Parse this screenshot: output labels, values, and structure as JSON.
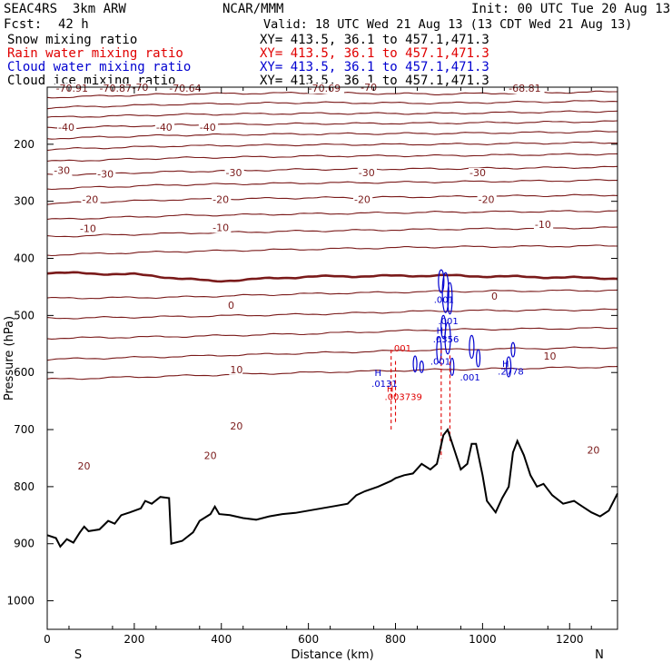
{
  "header": {
    "model": "SEAC4RS  3km ARW",
    "org": "NCAR/MMM",
    "init": "Init: 00 UTC Tue 20 Aug 13",
    "fcst_label": "Fcst:",
    "fcst_value": "42 h",
    "valid": "Valid: 18 UTC Wed 21 Aug 13 (13 CDT Wed 21 Aug 13)",
    "fields": [
      {
        "name": "Snow mixing ratio",
        "xy": "XY= 413.5, 36.1 to 457.1,471.3",
        "color": "#000000"
      },
      {
        "name": "Rain water mixing ratio",
        "xy": "XY= 413.5, 36.1 to 457.1,471.3",
        "color": "#e00000"
      },
      {
        "name": "Cloud water mixing ratio",
        "xy": "XY= 413.5, 36.1 to 457.1,471.3",
        "color": "#0000d0"
      },
      {
        "name": "Cloud ice mixing ratio",
        "xy": "XY= 413.5, 36.1 to 457.1,471.3",
        "color": "#000000"
      }
    ]
  },
  "chart_data": {
    "type": "line",
    "xlabel": "Distance (km)",
    "ylabel": "Pressure (hPa)",
    "xlim": [
      0,
      1310
    ],
    "ylim": [
      1050,
      100
    ],
    "y_reversed": true,
    "x_ticks": [
      "0",
      "200",
      "400",
      "600",
      "800",
      "1000",
      "1200"
    ],
    "x_tick_values": [
      0,
      200,
      400,
      600,
      800,
      1000,
      1200
    ],
    "y_ticks": [
      "200",
      "300",
      "400",
      "500",
      "600",
      "700",
      "800",
      "900",
      "1000"
    ],
    "y_tick_values": [
      200,
      300,
      400,
      500,
      600,
      700,
      800,
      900,
      1000
    ],
    "x_end_labels": {
      "left": "S",
      "right": "N"
    },
    "colors": {
      "temperature": "#7a1a1a",
      "terrain": "#000000",
      "rain": "#e00000",
      "cloud_water": "#0000d0"
    },
    "temperature_isotherms": [
      {
        "value": -70,
        "p": [
          [
            0,
            118
          ],
          [
            300,
            112
          ],
          [
            600,
            110
          ],
          [
            900,
            112
          ],
          [
            1310,
            108
          ]
        ]
      },
      {
        "value": -60,
        "p": [
          [
            0,
            136
          ],
          [
            300,
            130
          ],
          [
            600,
            127
          ],
          [
            900,
            128
          ],
          [
            1310,
            124
          ]
        ]
      },
      {
        "value": -55,
        "p": [
          [
            0,
            153
          ],
          [
            300,
            148
          ],
          [
            600,
            146
          ],
          [
            900,
            146
          ],
          [
            1310,
            142
          ]
        ]
      },
      {
        "value": -50,
        "p": [
          [
            0,
            172
          ],
          [
            300,
            166
          ],
          [
            600,
            164
          ],
          [
            900,
            163
          ],
          [
            1310,
            160
          ]
        ]
      },
      {
        "value": -45,
        "p": [
          [
            0,
            190
          ],
          [
            300,
            184
          ],
          [
            600,
            182
          ],
          [
            900,
            181
          ],
          [
            1310,
            178
          ]
        ]
      },
      {
        "value": -40,
        "p": [
          [
            0,
            209
          ],
          [
            300,
            203
          ],
          [
            600,
            201
          ],
          [
            900,
            200
          ],
          [
            1310,
            197
          ]
        ]
      },
      {
        "value": -35,
        "p": [
          [
            0,
            230
          ],
          [
            300,
            224
          ],
          [
            600,
            221
          ],
          [
            900,
            220
          ],
          [
            1310,
            217
          ]
        ]
      },
      {
        "value": -30,
        "p": [
          [
            0,
            254
          ],
          [
            300,
            248
          ],
          [
            600,
            244
          ],
          [
            900,
            243
          ],
          [
            1310,
            240
          ]
        ]
      },
      {
        "value": -25,
        "p": [
          [
            0,
            278
          ],
          [
            300,
            271
          ],
          [
            600,
            268
          ],
          [
            900,
            266
          ],
          [
            1310,
            263
          ]
        ]
      },
      {
        "value": -20,
        "p": [
          [
            0,
            304
          ],
          [
            300,
            297
          ],
          [
            600,
            294
          ],
          [
            900,
            292
          ],
          [
            1310,
            289
          ]
        ]
      },
      {
        "value": -15,
        "p": [
          [
            0,
            332
          ],
          [
            300,
            325
          ],
          [
            600,
            322
          ],
          [
            900,
            319
          ],
          [
            1310,
            317
          ]
        ]
      },
      {
        "value": -10,
        "p": [
          [
            0,
            362
          ],
          [
            300,
            356
          ],
          [
            600,
            352
          ],
          [
            900,
            349
          ],
          [
            1310,
            346
          ]
        ]
      },
      {
        "value": -5,
        "p": [
          [
            0,
            394
          ],
          [
            300,
            388
          ],
          [
            600,
            384
          ],
          [
            900,
            380
          ],
          [
            1310,
            378
          ]
        ]
      },
      {
        "value": 0,
        "p": [
          [
            0,
            425
          ],
          [
            200,
            428
          ],
          [
            380,
            440
          ],
          [
            600,
            432
          ],
          [
            900,
            430
          ],
          [
            1310,
            435
          ]
        ]
      },
      {
        "value": 5,
        "p": [
          [
            0,
            470
          ],
          [
            300,
            468
          ],
          [
            600,
            462
          ],
          [
            900,
            458
          ],
          [
            1310,
            456
          ]
        ]
      },
      {
        "value": 10,
        "p": [
          [
            0,
            505
          ],
          [
            300,
            502
          ],
          [
            600,
            498
          ],
          [
            900,
            492
          ],
          [
            1310,
            490
          ]
        ]
      },
      {
        "value": 15,
        "p": [
          [
            0,
            540
          ],
          [
            300,
            537
          ],
          [
            600,
            532
          ],
          [
            900,
            525
          ],
          [
            1310,
            522
          ]
        ]
      },
      {
        "value": 20,
        "p": [
          [
            0,
            577
          ],
          [
            300,
            572
          ],
          [
            600,
            566
          ],
          [
            900,
            560
          ],
          [
            1310,
            556
          ]
        ]
      },
      {
        "value": 25,
        "p": [
          [
            0,
            612
          ],
          [
            300,
            606
          ],
          [
            600,
            600
          ],
          [
            900,
            595
          ],
          [
            1310,
            590
          ]
        ]
      }
    ],
    "contour_labels": [
      {
        "text": "-70.91",
        "x": 20,
        "p": 108
      },
      {
        "text": "-70.87",
        "x": 120,
        "p": 108
      },
      {
        "text": "-70",
        "x": 195,
        "p": 106
      },
      {
        "text": "-70.64",
        "x": 280,
        "p": 108
      },
      {
        "text": "-70.69",
        "x": 600,
        "p": 108
      },
      {
        "text": "-70",
        "x": 720,
        "p": 106
      },
      {
        "text": "-68.81",
        "x": 1060,
        "p": 108
      },
      {
        "text": "-40",
        "x": 25,
        "p": 176
      },
      {
        "text": "-40",
        "x": 250,
        "p": 176
      },
      {
        "text": "-40",
        "x": 350,
        "p": 176
      },
      {
        "text": "-30",
        "x": 15,
        "p": 252
      },
      {
        "text": "-30",
        "x": 115,
        "p": 258
      },
      {
        "text": "-30",
        "x": 410,
        "p": 256
      },
      {
        "text": "-30",
        "x": 715,
        "p": 256
      },
      {
        "text": "-30",
        "x": 970,
        "p": 256
      },
      {
        "text": "-20",
        "x": 80,
        "p": 303
      },
      {
        "text": "-20",
        "x": 380,
        "p": 303
      },
      {
        "text": "-20",
        "x": 705,
        "p": 303
      },
      {
        "text": "-20",
        "x": 990,
        "p": 303
      },
      {
        "text": "-10",
        "x": 75,
        "p": 354
      },
      {
        "text": "-10",
        "x": 380,
        "p": 352
      },
      {
        "text": "-10",
        "x": 1120,
        "p": 347
      },
      {
        "text": "0",
        "x": 415,
        "p": 488
      },
      {
        "text": "0",
        "x": 1020,
        "p": 472
      },
      {
        "text": "10",
        "x": 420,
        "p": 601
      },
      {
        "text": "10",
        "x": 1140,
        "p": 577
      },
      {
        "text": "20",
        "x": 420,
        "p": 700
      },
      {
        "text": "20",
        "x": 360,
        "p": 752
      },
      {
        "text": "20",
        "x": 70,
        "p": 770
      },
      {
        "text": "20",
        "x": 1240,
        "p": 742
      }
    ],
    "terrain": [
      [
        0,
        885
      ],
      [
        20,
        890
      ],
      [
        30,
        905
      ],
      [
        45,
        892
      ],
      [
        60,
        898
      ],
      [
        75,
        880
      ],
      [
        85,
        870
      ],
      [
        95,
        878
      ],
      [
        120,
        875
      ],
      [
        140,
        860
      ],
      [
        155,
        865
      ],
      [
        170,
        850
      ],
      [
        190,
        845
      ],
      [
        215,
        838
      ],
      [
        225,
        825
      ],
      [
        240,
        830
      ],
      [
        260,
        818
      ],
      [
        280,
        820
      ],
      [
        285,
        900
      ],
      [
        310,
        895
      ],
      [
        335,
        880
      ],
      [
        350,
        860
      ],
      [
        375,
        848
      ],
      [
        385,
        835
      ],
      [
        395,
        848
      ],
      [
        420,
        850
      ],
      [
        450,
        855
      ],
      [
        480,
        858
      ],
      [
        510,
        852
      ],
      [
        540,
        848
      ],
      [
        570,
        846
      ],
      [
        600,
        842
      ],
      [
        630,
        838
      ],
      [
        660,
        834
      ],
      [
        690,
        830
      ],
      [
        710,
        815
      ],
      [
        730,
        808
      ],
      [
        760,
        800
      ],
      [
        790,
        790
      ],
      [
        800,
        785
      ],
      [
        820,
        780
      ],
      [
        840,
        777
      ],
      [
        860,
        760
      ],
      [
        880,
        770
      ],
      [
        895,
        760
      ],
      [
        910,
        710
      ],
      [
        920,
        700
      ],
      [
        935,
        735
      ],
      [
        950,
        770
      ],
      [
        965,
        760
      ],
      [
        975,
        725
      ],
      [
        985,
        725
      ],
      [
        1000,
        780
      ],
      [
        1010,
        825
      ],
      [
        1030,
        845
      ],
      [
        1045,
        820
      ],
      [
        1060,
        800
      ],
      [
        1070,
        740
      ],
      [
        1080,
        720
      ],
      [
        1095,
        745
      ],
      [
        1110,
        780
      ],
      [
        1125,
        800
      ],
      [
        1140,
        795
      ],
      [
        1160,
        815
      ],
      [
        1185,
        830
      ],
      [
        1210,
        825
      ],
      [
        1230,
        835
      ],
      [
        1250,
        845
      ],
      [
        1270,
        852
      ],
      [
        1290,
        842
      ],
      [
        1310,
        812
      ]
    ],
    "markers": [
      {
        "text": ".001",
        "x": 790,
        "p": 563,
        "series": "rain"
      },
      {
        "text": "H",
        "x": 780,
        "p": 634,
        "series": "rain"
      },
      {
        "text": ".003739",
        "x": 775,
        "p": 648,
        "series": "rain"
      },
      {
        "text": "H",
        "x": 752,
        "p": 606,
        "series": "cloud_water"
      },
      {
        "text": ".0131",
        "x": 745,
        "p": 625,
        "series": "cloud_water"
      },
      {
        "text": ".001",
        "x": 888,
        "p": 478,
        "series": "cloud_water"
      },
      {
        "text": ".001",
        "x": 898,
        "p": 515,
        "series": "cloud_water"
      },
      {
        "text": "H",
        "x": 894,
        "p": 532,
        "series": "cloud_water"
      },
      {
        "text": ".0356",
        "x": 886,
        "p": 547,
        "series": "cloud_water"
      },
      {
        "text": ".001",
        "x": 880,
        "p": 586,
        "series": "cloud_water"
      },
      {
        "text": ".001",
        "x": 948,
        "p": 614,
        "series": "cloud_water"
      },
      {
        "text": "H",
        "x": 1045,
        "p": 590,
        "series": "cloud_water"
      },
      {
        "text": ".2778",
        "x": 1035,
        "p": 604,
        "series": "cloud_water"
      }
    ]
  }
}
